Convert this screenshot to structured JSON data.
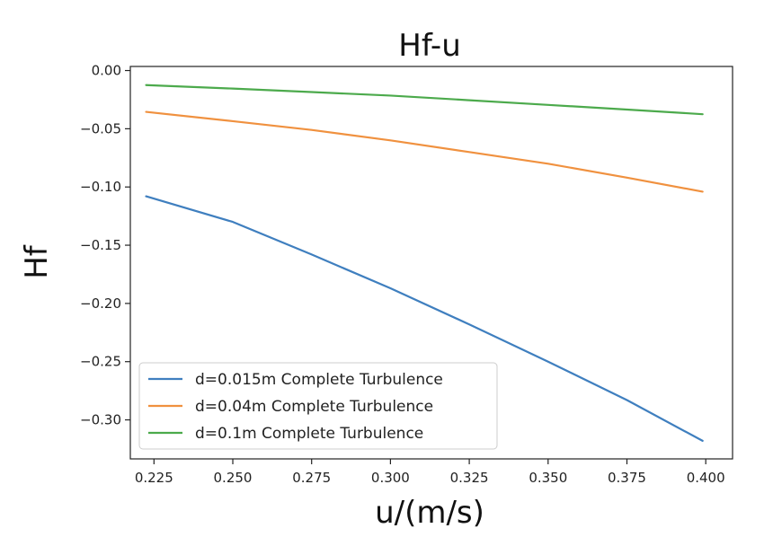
{
  "chart_data": {
    "type": "line",
    "title": "Hf-u",
    "xlabel": "u/(m/s)",
    "ylabel": "Hf",
    "xlim": [
      0.2175,
      0.4085
    ],
    "ylim": [
      -0.3335,
      0.0035
    ],
    "xticks": [
      0.225,
      0.25,
      0.275,
      0.3,
      0.325,
      0.35,
      0.375,
      0.4
    ],
    "xtick_labels": [
      "0.225",
      "0.250",
      "0.275",
      "0.300",
      "0.325",
      "0.350",
      "0.375",
      "0.400"
    ],
    "yticks": [
      0.0,
      -0.05,
      -0.1,
      -0.15,
      -0.2,
      -0.25,
      -0.3
    ],
    "ytick_labels": [
      "0.00",
      "−0.05",
      "−0.10",
      "−0.15",
      "−0.20",
      "−0.25",
      "−0.30"
    ],
    "grid": false,
    "legend_position": "lower-left",
    "x": [
      0.2225,
      0.25,
      0.275,
      0.3,
      0.325,
      0.35,
      0.375,
      0.399
    ],
    "series": [
      {
        "name": "d=0.015m Complete Turbulence",
        "color": "#3f7fbf",
        "values": [
          -0.108,
          -0.13,
          -0.158,
          -0.187,
          -0.218,
          -0.25,
          -0.283,
          -0.318
        ]
      },
      {
        "name": "d=0.04m Complete Turbulence",
        "color": "#f0913f",
        "values": [
          -0.0355,
          -0.0435,
          -0.051,
          -0.06,
          -0.07,
          -0.08,
          -0.092,
          -0.104
        ]
      },
      {
        "name": "d=0.1m Complete Turbulence",
        "color": "#4caa4c",
        "values": [
          -0.0125,
          -0.0155,
          -0.0185,
          -0.0215,
          -0.0255,
          -0.0295,
          -0.0335,
          -0.0375
        ]
      }
    ]
  }
}
